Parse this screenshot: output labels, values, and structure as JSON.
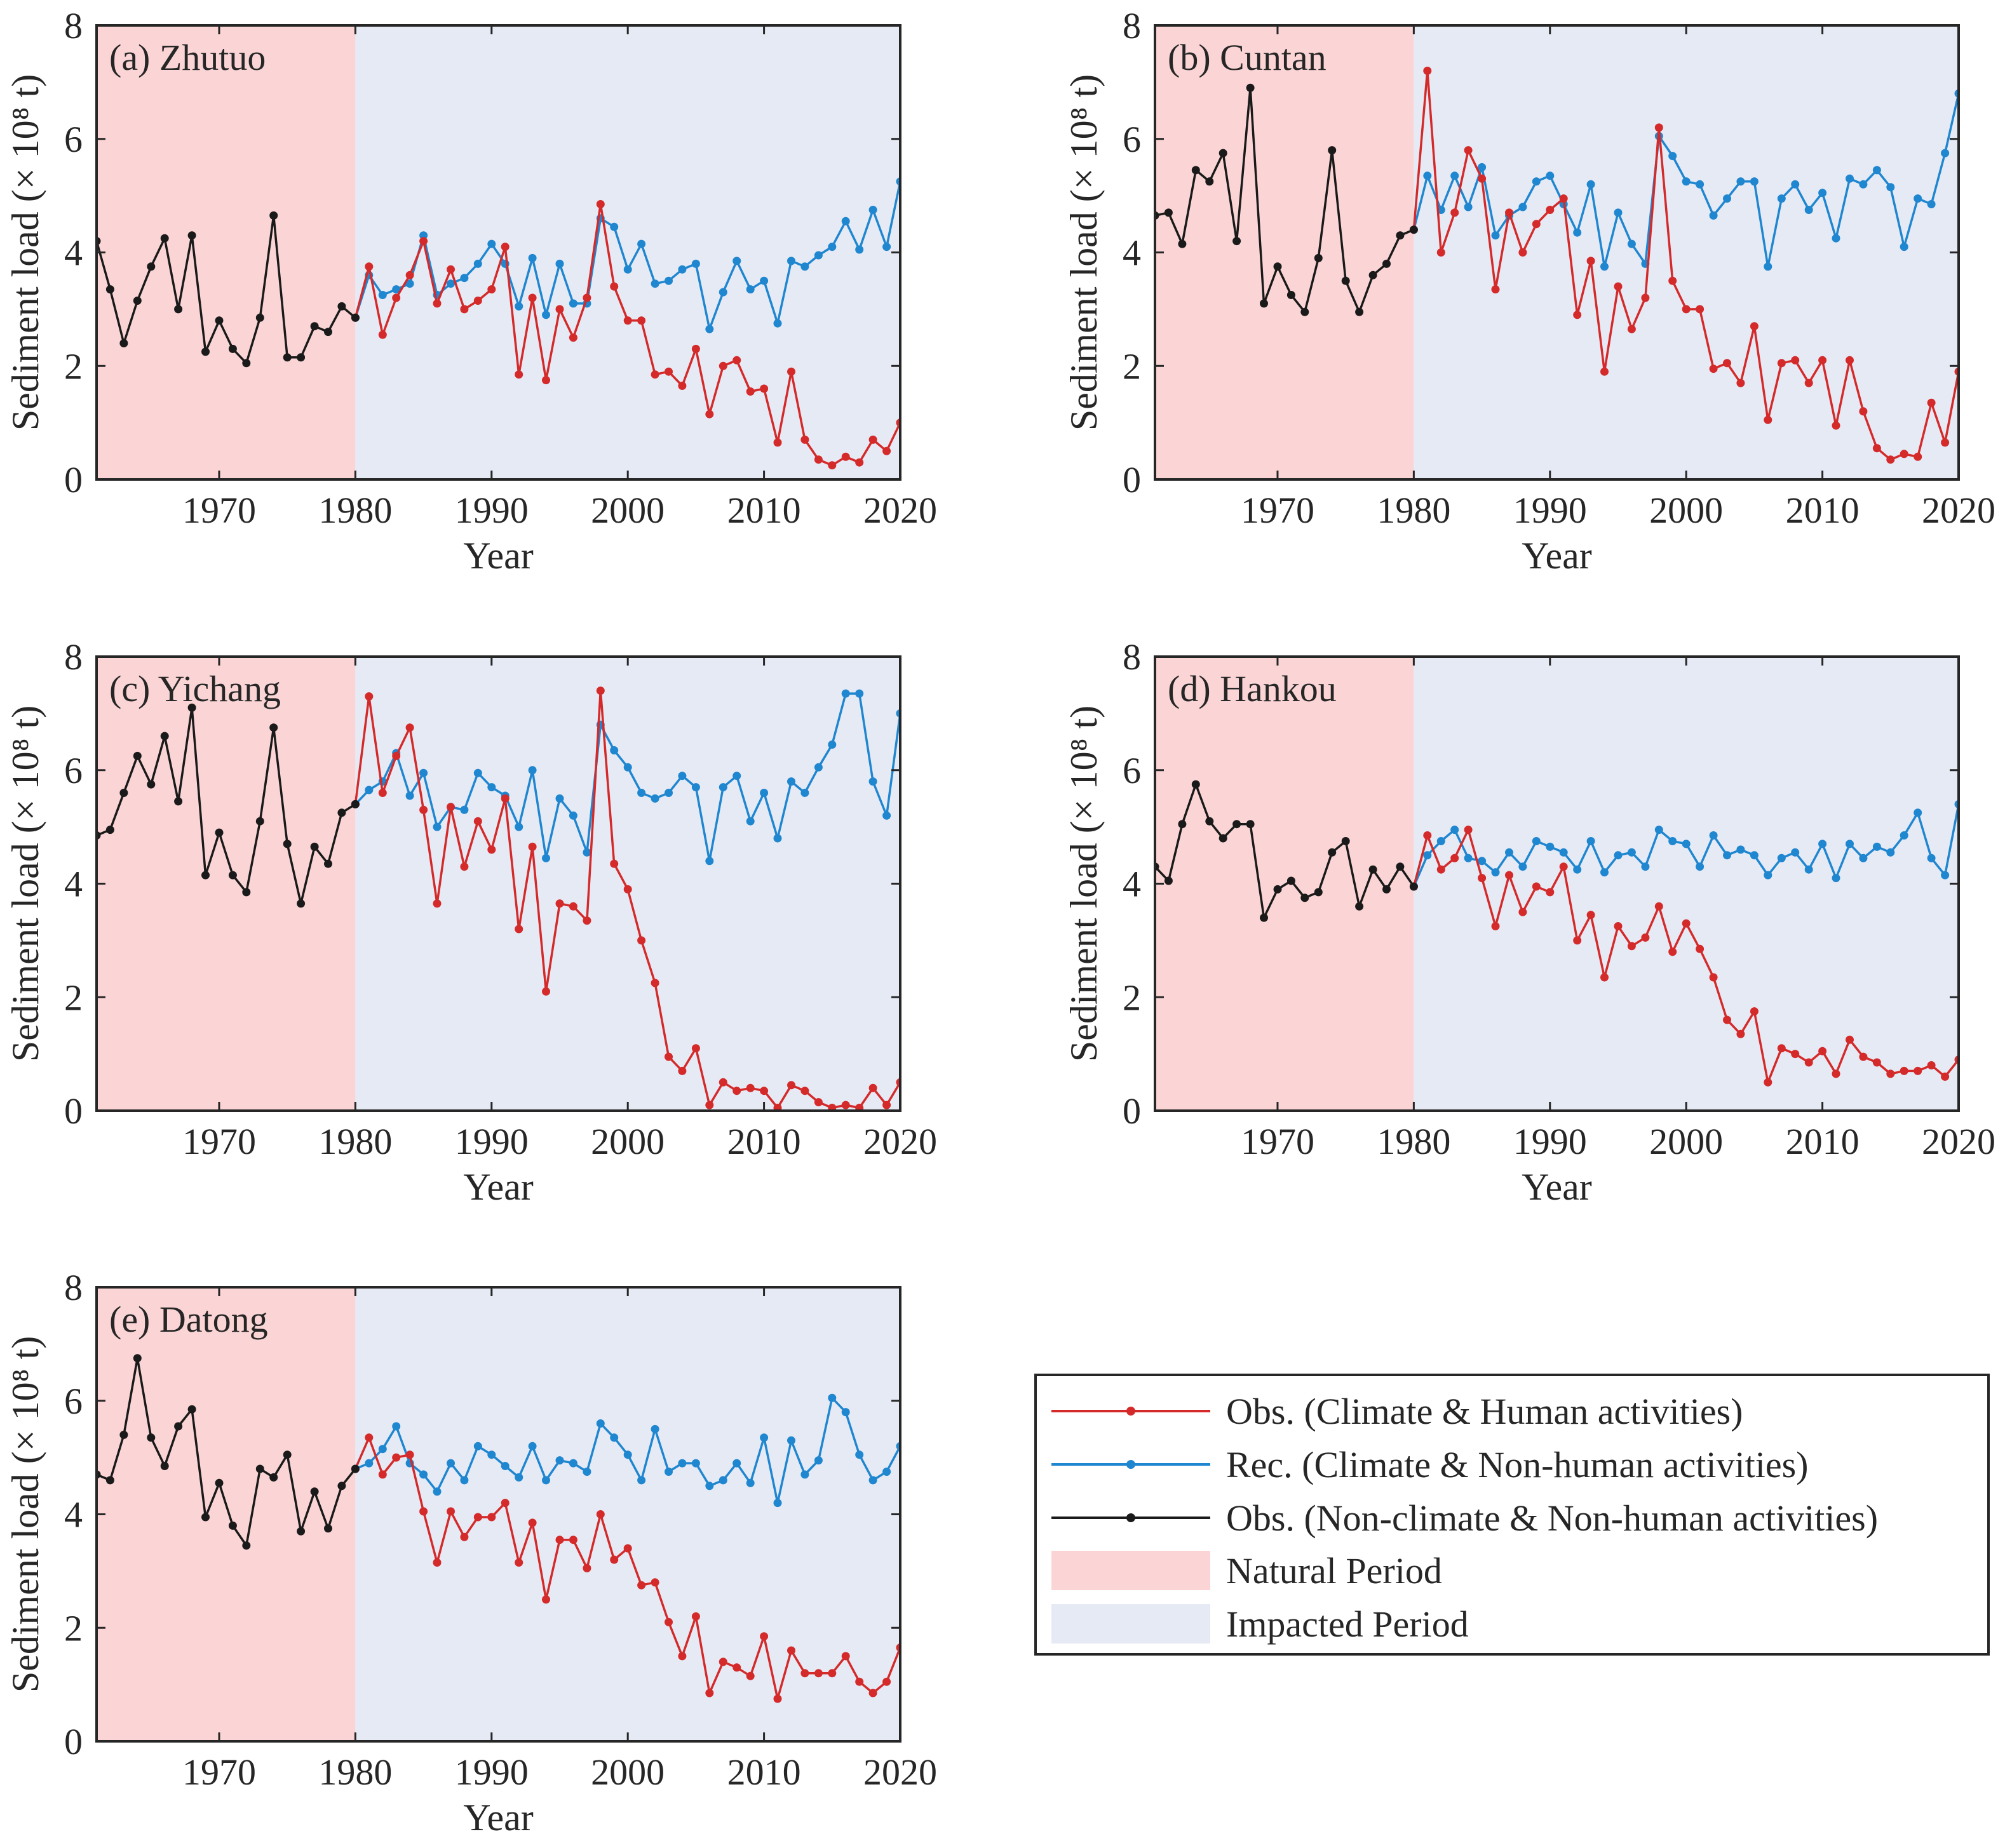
{
  "colors": {
    "observed": "#d42a2a",
    "reconstructed": "#1f86d0",
    "natural": "#1a1a1a",
    "natural_period_bg": "#fbd5d5",
    "impacted_period_bg": "#e6eaf5"
  },
  "legend": {
    "observed": "Obs. (Climate & Human activities)",
    "reconstructed": "Rec. (Climate & Non-human activities)",
    "natural": "Obs. (Non-climate & Non-human activities)",
    "natural_period": "Natural Period",
    "impacted_period": "Impacted Period"
  },
  "chart_data": [
    {
      "type": "line",
      "title": "(a) Zhutuo",
      "xlabel": "Year",
      "ylabel": "Sediment load (× 10⁸ t)",
      "xlim": [
        1961,
        2020
      ],
      "ylim": [
        0,
        8
      ],
      "xticks": [
        "1970",
        "1980",
        "1990",
        "2000",
        "2010",
        "2020"
      ],
      "yticks": [
        "0",
        "2",
        "4",
        "6",
        "8"
      ],
      "natural_period": [
        1961,
        1980
      ],
      "impacted_period": [
        1980,
        2020
      ],
      "natural_years": [
        1961,
        1962,
        1963,
        1964,
        1965,
        1966,
        1967,
        1968,
        1969,
        1970,
        1971,
        1972,
        1973,
        1974,
        1975,
        1976,
        1977,
        1978,
        1979,
        1980
      ],
      "natural_values": [
        4.2,
        3.35,
        2.4,
        3.15,
        3.75,
        4.25,
        3.0,
        4.3,
        2.25,
        2.8,
        2.3,
        2.05,
        2.85,
        4.65,
        2.15,
        2.15,
        2.7,
        2.6,
        3.05,
        2.85
      ],
      "impacted_years": [
        1980,
        1981,
        1982,
        1983,
        1984,
        1985,
        1986,
        1987,
        1988,
        1989,
        1990,
        1991,
        1992,
        1993,
        1994,
        1995,
        1996,
        1997,
        1998,
        1999,
        2000,
        2001,
        2002,
        2003,
        2004,
        2005,
        2006,
        2007,
        2008,
        2009,
        2010,
        2011,
        2012,
        2013,
        2014,
        2015,
        2016,
        2017,
        2018,
        2019,
        2020
      ],
      "observed": [
        2.85,
        3.75,
        2.55,
        3.2,
        3.6,
        4.2,
        3.1,
        3.7,
        3.0,
        3.15,
        3.35,
        4.1,
        1.85,
        3.2,
        1.75,
        3.0,
        2.5,
        3.2,
        4.85,
        3.4,
        2.8,
        2.8,
        1.85,
        1.9,
        1.65,
        2.3,
        1.15,
        2.0,
        2.1,
        1.55,
        1.6,
        0.65,
        1.9,
        0.7,
        0.35,
        0.25,
        0.4,
        0.3,
        0.7,
        0.5,
        1.0
      ],
      "reconstructed": [
        2.85,
        3.6,
        3.25,
        3.35,
        3.45,
        4.3,
        3.25,
        3.45,
        3.55,
        3.8,
        4.15,
        3.8,
        3.05,
        3.9,
        2.9,
        3.8,
        3.1,
        3.1,
        4.6,
        4.45,
        3.7,
        4.15,
        3.45,
        3.5,
        3.7,
        3.8,
        2.65,
        3.3,
        3.85,
        3.35,
        3.5,
        2.75,
        3.85,
        3.75,
        3.95,
        4.1,
        4.55,
        4.05,
        4.75,
        4.1,
        5.25
      ]
    },
    {
      "type": "line",
      "title": "(b) Cuntan",
      "xlabel": "Year",
      "ylabel": "Sediment load (× 10⁸ t)",
      "xlim": [
        1961,
        2020
      ],
      "ylim": [
        0,
        8
      ],
      "xticks": [
        "1970",
        "1980",
        "1990",
        "2000",
        "2010",
        "2020"
      ],
      "yticks": [
        "0",
        "2",
        "4",
        "6",
        "8"
      ],
      "natural_period": [
        1961,
        1980
      ],
      "impacted_period": [
        1980,
        2020
      ],
      "natural_years": [
        1961,
        1962,
        1963,
        1964,
        1965,
        1966,
        1967,
        1968,
        1969,
        1970,
        1971,
        1972,
        1973,
        1974,
        1975,
        1976,
        1977,
        1978,
        1979,
        1980
      ],
      "natural_values": [
        4.65,
        4.7,
        4.15,
        5.45,
        5.25,
        5.75,
        4.2,
        6.9,
        3.1,
        3.75,
        3.25,
        2.95,
        3.9,
        5.8,
        3.5,
        2.95,
        3.6,
        3.8,
        4.3,
        4.4
      ],
      "impacted_years": [
        1980,
        1981,
        1982,
        1983,
        1984,
        1985,
        1986,
        1987,
        1988,
        1989,
        1990,
        1991,
        1992,
        1993,
        1994,
        1995,
        1996,
        1997,
        1998,
        1999,
        2000,
        2001,
        2002,
        2003,
        2004,
        2005,
        2006,
        2007,
        2008,
        2009,
        2010,
        2011,
        2012,
        2013,
        2014,
        2015,
        2016,
        2017,
        2018,
        2019,
        2020
      ],
      "observed": [
        4.4,
        7.2,
        4.0,
        4.7,
        5.8,
        5.3,
        3.35,
        4.7,
        4.0,
        4.5,
        4.75,
        4.95,
        2.9,
        3.85,
        1.9,
        3.4,
        2.65,
        3.2,
        6.2,
        3.5,
        3.0,
        3.0,
        1.95,
        2.05,
        1.7,
        2.7,
        1.05,
        2.05,
        2.1,
        1.7,
        2.1,
        0.95,
        2.1,
        1.2,
        0.55,
        0.35,
        0.45,
        0.4,
        1.35,
        0.65,
        1.9
      ],
      "reconstructed": [
        4.4,
        5.35,
        4.75,
        5.35,
        4.8,
        5.5,
        4.3,
        4.65,
        4.8,
        5.25,
        5.35,
        4.85,
        4.35,
        5.2,
        3.75,
        4.7,
        4.15,
        3.8,
        6.05,
        5.7,
        5.25,
        5.2,
        4.65,
        4.95,
        5.25,
        5.25,
        3.75,
        4.95,
        5.2,
        4.75,
        5.05,
        4.25,
        5.3,
        5.2,
        5.45,
        5.15,
        4.1,
        4.95,
        4.85,
        5.75,
        6.8
      ]
    },
    {
      "type": "line",
      "title": "(c) Yichang",
      "xlabel": "Year",
      "ylabel": "Sediment load (× 10⁸ t)",
      "xlim": [
        1961,
        2020
      ],
      "ylim": [
        0,
        8
      ],
      "xticks": [
        "1970",
        "1980",
        "1990",
        "2000",
        "2010",
        "2020"
      ],
      "yticks": [
        "0",
        "2",
        "4",
        "6",
        "8"
      ],
      "natural_period": [
        1961,
        1980
      ],
      "impacted_period": [
        1980,
        2020
      ],
      "natural_years": [
        1961,
        1962,
        1963,
        1964,
        1965,
        1966,
        1967,
        1968,
        1969,
        1970,
        1971,
        1972,
        1973,
        1974,
        1975,
        1976,
        1977,
        1978,
        1979,
        1980
      ],
      "natural_values": [
        4.85,
        4.95,
        5.6,
        6.25,
        5.75,
        6.6,
        5.45,
        7.1,
        4.15,
        4.9,
        4.15,
        3.85,
        5.1,
        6.75,
        4.7,
        3.65,
        4.65,
        4.35,
        5.25,
        5.4
      ],
      "impacted_years": [
        1980,
        1981,
        1982,
        1983,
        1984,
        1985,
        1986,
        1987,
        1988,
        1989,
        1990,
        1991,
        1992,
        1993,
        1994,
        1995,
        1996,
        1997,
        1998,
        1999,
        2000,
        2001,
        2002,
        2003,
        2004,
        2005,
        2006,
        2007,
        2008,
        2009,
        2010,
        2011,
        2012,
        2013,
        2014,
        2015,
        2016,
        2017,
        2018,
        2019,
        2020
      ],
      "observed": [
        5.4,
        7.3,
        5.6,
        6.25,
        6.75,
        5.3,
        3.65,
        5.35,
        4.3,
        5.1,
        4.6,
        5.5,
        3.2,
        4.65,
        2.1,
        3.65,
        3.6,
        3.35,
        7.4,
        4.35,
        3.9,
        3.0,
        2.25,
        0.95,
        0.7,
        1.1,
        0.1,
        0.5,
        0.35,
        0.4,
        0.35,
        0.05,
        0.45,
        0.35,
        0.15,
        0.05,
        0.1,
        0.05,
        0.4,
        0.1,
        0.5
      ],
      "reconstructed": [
        5.4,
        5.65,
        5.8,
        6.3,
        5.55,
        5.95,
        5.0,
        5.35,
        5.3,
        5.95,
        5.7,
        5.55,
        5.0,
        6.0,
        4.45,
        5.5,
        5.2,
        4.55,
        6.8,
        6.35,
        6.05,
        5.6,
        5.5,
        5.6,
        5.9,
        5.7,
        4.4,
        5.7,
        5.9,
        5.1,
        5.6,
        4.8,
        5.8,
        5.6,
        6.05,
        6.45,
        7.35,
        7.35,
        5.8,
        5.2,
        7.0
      ]
    },
    {
      "type": "line",
      "title": "(d) Hankou",
      "xlabel": "Year",
      "ylabel": "Sediment load (× 10⁸ t)",
      "xlim": [
        1961,
        2020
      ],
      "ylim": [
        0,
        8
      ],
      "xticks": [
        "1970",
        "1980",
        "1990",
        "2000",
        "2010",
        "2020"
      ],
      "yticks": [
        "0",
        "2",
        "4",
        "6",
        "8"
      ],
      "natural_period": [
        1961,
        1980
      ],
      "impacted_period": [
        1980,
        2020
      ],
      "natural_years": [
        1961,
        1962,
        1963,
        1964,
        1965,
        1966,
        1967,
        1968,
        1969,
        1970,
        1971,
        1972,
        1973,
        1974,
        1975,
        1976,
        1977,
        1978,
        1979,
        1980
      ],
      "natural_values": [
        4.3,
        4.05,
        5.05,
        5.75,
        5.1,
        4.8,
        5.05,
        5.05,
        3.4,
        3.9,
        4.05,
        3.75,
        3.85,
        4.55,
        4.75,
        3.6,
        4.25,
        3.9,
        4.3,
        3.95
      ],
      "impacted_years": [
        1980,
        1981,
        1982,
        1983,
        1984,
        1985,
        1986,
        1987,
        1988,
        1989,
        1990,
        1991,
        1992,
        1993,
        1994,
        1995,
        1996,
        1997,
        1998,
        1999,
        2000,
        2001,
        2002,
        2003,
        2004,
        2005,
        2006,
        2007,
        2008,
        2009,
        2010,
        2011,
        2012,
        2013,
        2014,
        2015,
        2016,
        2017,
        2018,
        2019,
        2020
      ],
      "observed": [
        3.95,
        4.85,
        4.25,
        4.45,
        4.95,
        4.1,
        3.25,
        4.15,
        3.5,
        3.95,
        3.85,
        4.3,
        3.0,
        3.45,
        2.35,
        3.25,
        2.9,
        3.05,
        3.6,
        2.8,
        3.3,
        2.85,
        2.35,
        1.6,
        1.35,
        1.75,
        0.5,
        1.1,
        1.0,
        0.85,
        1.05,
        0.65,
        1.25,
        0.95,
        0.85,
        0.65,
        0.7,
        0.7,
        0.8,
        0.6,
        0.9
      ],
      "reconstructed": [
        3.95,
        4.5,
        4.75,
        4.95,
        4.45,
        4.4,
        4.2,
        4.55,
        4.3,
        4.75,
        4.65,
        4.55,
        4.25,
        4.75,
        4.2,
        4.5,
        4.55,
        4.3,
        4.95,
        4.75,
        4.7,
        4.3,
        4.85,
        4.5,
        4.6,
        4.5,
        4.15,
        4.45,
        4.55,
        4.25,
        4.7,
        4.1,
        4.7,
        4.45,
        4.65,
        4.55,
        4.85,
        5.25,
        4.45,
        4.15,
        5.4
      ]
    },
    {
      "type": "line",
      "title": "(e) Datong",
      "xlabel": "Year",
      "ylabel": "Sediment load (× 10⁸ t)",
      "xlim": [
        1961,
        2020
      ],
      "ylim": [
        0,
        8
      ],
      "xticks": [
        "1970",
        "1980",
        "1990",
        "2000",
        "2010",
        "2020"
      ],
      "yticks": [
        "0",
        "2",
        "4",
        "6",
        "8"
      ],
      "natural_period": [
        1961,
        1980
      ],
      "impacted_period": [
        1980,
        2020
      ],
      "natural_years": [
        1961,
        1962,
        1963,
        1964,
        1965,
        1966,
        1967,
        1968,
        1969,
        1970,
        1971,
        1972,
        1973,
        1974,
        1975,
        1976,
        1977,
        1978,
        1979,
        1980
      ],
      "natural_values": [
        4.7,
        4.6,
        5.4,
        6.75,
        5.35,
        4.85,
        5.55,
        5.85,
        3.95,
        4.55,
        3.8,
        3.45,
        4.8,
        4.65,
        5.05,
        3.7,
        4.4,
        3.75,
        4.5,
        4.8
      ],
      "impacted_years": [
        1980,
        1981,
        1982,
        1983,
        1984,
        1985,
        1986,
        1987,
        1988,
        1989,
        1990,
        1991,
        1992,
        1993,
        1994,
        1995,
        1996,
        1997,
        1998,
        1999,
        2000,
        2001,
        2002,
        2003,
        2004,
        2005,
        2006,
        2007,
        2008,
        2009,
        2010,
        2011,
        2012,
        2013,
        2014,
        2015,
        2016,
        2017,
        2018,
        2019,
        2020
      ],
      "observed": [
        4.8,
        5.35,
        4.7,
        5.0,
        5.05,
        4.05,
        3.15,
        4.05,
        3.6,
        3.95,
        3.95,
        4.2,
        3.15,
        3.85,
        2.5,
        3.55,
        3.55,
        3.05,
        4.0,
        3.2,
        3.4,
        2.75,
        2.8,
        2.1,
        1.5,
        2.2,
        0.85,
        1.4,
        1.3,
        1.15,
        1.85,
        0.75,
        1.6,
        1.2,
        1.2,
        1.2,
        1.5,
        1.05,
        0.85,
        1.05,
        1.65
      ],
      "reconstructed": [
        4.8,
        4.9,
        5.15,
        5.55,
        4.9,
        4.7,
        4.4,
        4.9,
        4.6,
        5.2,
        5.05,
        4.85,
        4.65,
        5.2,
        4.6,
        4.95,
        4.9,
        4.75,
        5.6,
        5.35,
        5.05,
        4.6,
        5.5,
        4.75,
        4.9,
        4.9,
        4.5,
        4.6,
        4.9,
        4.55,
        5.35,
        4.2,
        5.3,
        4.7,
        4.95,
        6.05,
        5.8,
        5.05,
        4.6,
        4.75,
        5.2
      ]
    }
  ]
}
